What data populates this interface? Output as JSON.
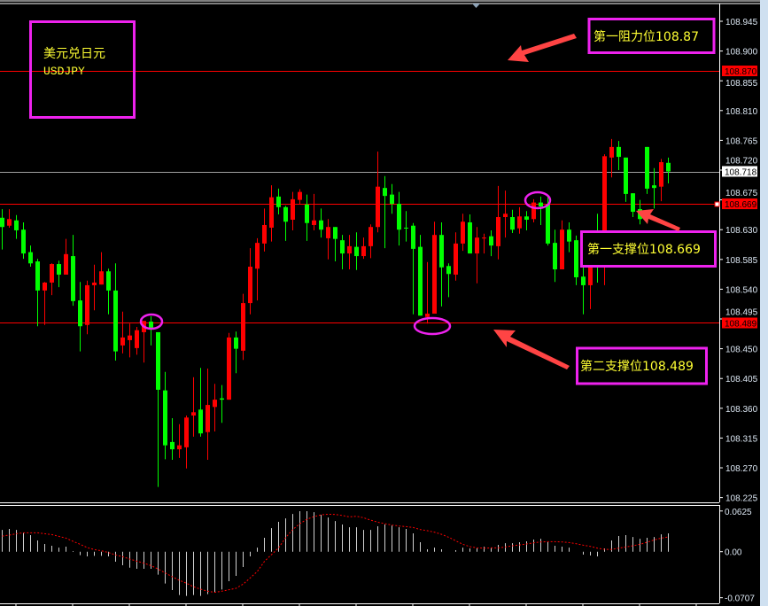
{
  "window": {
    "symbol_title_cn": "美元兑日元",
    "symbol_title": "USDJPY"
  },
  "annotations": {
    "resistance_1": "第一阻力位108.87",
    "support_1": "第一支撑位108.669",
    "support_2": "第二支撑位108.489"
  },
  "colors": {
    "bull_candle": "#ff0000",
    "bear_candle": "#00ff00",
    "annotation_box": "#ee22ee",
    "annotation_text": "#ffff33",
    "arrow": "#ff4444",
    "level_line": "#ff0000",
    "bid_line": "#a0a0a0",
    "macd_histogram": "#d0d0d0",
    "macd_signal": "#ff0000"
  },
  "chart_data": [
    {
      "type": "candlestick",
      "title": "",
      "ylim": [
        108.225,
        108.96
      ],
      "y_ticks": [
        "108.945",
        "108.900",
        "108.855",
        "108.810",
        "108.765",
        "108.720",
        "108.675",
        "108.630",
        "108.585",
        "108.540",
        "108.495",
        "108.450",
        "108.405",
        "108.360",
        "108.315",
        "108.270",
        "108.225"
      ],
      "price_tags": [
        {
          "label": "108.870",
          "value": 108.87,
          "style": "red"
        },
        {
          "label": "108.718",
          "value": 108.718,
          "style": "bid"
        },
        {
          "label": "108.669",
          "value": 108.669,
          "style": "red"
        },
        {
          "label": "108.489",
          "value": 108.489,
          "style": "red"
        }
      ],
      "horizontal_levels": [
        {
          "value": 108.87,
          "color": "#ff0000"
        },
        {
          "value": 108.718,
          "color": "#a0a0a0"
        },
        {
          "value": 108.669,
          "color": "#ff0000"
        },
        {
          "value": 108.489,
          "color": "#ff0000"
        }
      ],
      "ohlc_fields": [
        "open",
        "high",
        "low",
        "close"
      ],
      "candles": [
        [
          108.648,
          108.661,
          108.6,
          108.634
        ],
        [
          108.636,
          108.661,
          108.633,
          108.646
        ],
        [
          108.644,
          108.652,
          108.616,
          108.629
        ],
        [
          108.63,
          108.641,
          108.586,
          108.594
        ],
        [
          108.596,
          108.606,
          108.574,
          108.579
        ],
        [
          108.582,
          108.586,
          108.484,
          108.538
        ],
        [
          108.538,
          108.551,
          108.486,
          108.55
        ],
        [
          108.55,
          108.579,
          108.531,
          108.578
        ],
        [
          108.578,
          108.583,
          108.543,
          108.562
        ],
        [
          108.562,
          108.616,
          108.562,
          108.593
        ],
        [
          108.59,
          108.622,
          108.515,
          108.522
        ],
        [
          108.523,
          108.551,
          108.446,
          108.484
        ],
        [
          108.486,
          108.553,
          108.472,
          108.546
        ],
        [
          108.546,
          108.577,
          108.508,
          108.55
        ],
        [
          108.547,
          108.596,
          108.547,
          108.567
        ],
        [
          108.567,
          108.571,
          108.502,
          108.538
        ],
        [
          108.538,
          108.579,
          108.432,
          108.446
        ],
        [
          108.455,
          108.506,
          108.443,
          108.467
        ],
        [
          108.463,
          108.488,
          108.437,
          108.47
        ],
        [
          108.451,
          108.483,
          108.441,
          108.478
        ],
        [
          108.475,
          108.492,
          108.429,
          108.492
        ],
        [
          108.491,
          108.499,
          108.455,
          108.48
        ],
        [
          108.475,
          108.475,
          108.241,
          108.388
        ],
        [
          108.387,
          108.415,
          108.283,
          108.304
        ],
        [
          108.309,
          108.345,
          108.282,
          108.298
        ],
        [
          108.298,
          108.336,
          108.285,
          108.304
        ],
        [
          108.301,
          108.349,
          108.269,
          108.346
        ],
        [
          108.349,
          108.407,
          108.317,
          108.354
        ],
        [
          108.358,
          108.421,
          108.317,
          108.322
        ],
        [
          108.324,
          108.42,
          108.282,
          108.365
        ],
        [
          108.362,
          108.397,
          108.325,
          108.373
        ],
        [
          108.375,
          108.395,
          108.338,
          108.373
        ],
        [
          108.373,
          108.474,
          108.373,
          108.467
        ],
        [
          108.467,
          108.476,
          108.413,
          108.45
        ],
        [
          108.447,
          108.533,
          108.433,
          108.519
        ],
        [
          108.519,
          108.602,
          108.502,
          108.574
        ],
        [
          108.571,
          108.617,
          108.523,
          108.61
        ],
        [
          108.609,
          108.662,
          108.597,
          108.637
        ],
        [
          108.633,
          108.697,
          108.612,
          108.679
        ],
        [
          108.68,
          108.692,
          108.653,
          108.664
        ],
        [
          108.664,
          108.666,
          108.613,
          108.642
        ],
        [
          108.645,
          108.687,
          108.629,
          108.676
        ],
        [
          108.675,
          108.691,
          108.669,
          108.687
        ],
        [
          108.668,
          108.683,
          108.613,
          108.64
        ],
        [
          108.637,
          108.684,
          108.629,
          108.644
        ],
        [
          108.644,
          108.662,
          108.618,
          108.63
        ],
        [
          108.617,
          108.646,
          108.585,
          108.634
        ],
        [
          108.634,
          108.634,
          108.582,
          108.616
        ],
        [
          108.614,
          108.622,
          108.57,
          108.594
        ],
        [
          108.594,
          108.622,
          108.57,
          108.605
        ],
        [
          108.604,
          108.626,
          108.569,
          108.59
        ],
        [
          108.59,
          108.618,
          108.586,
          108.605
        ],
        [
          108.605,
          108.638,
          108.587,
          108.634
        ],
        [
          108.634,
          108.748,
          108.626,
          108.695
        ],
        [
          108.693,
          108.711,
          108.602,
          108.681
        ],
        [
          108.683,
          108.699,
          108.654,
          108.669
        ],
        [
          108.669,
          108.687,
          108.606,
          108.63
        ],
        [
          108.633,
          108.658,
          108.612,
          108.632
        ],
        [
          108.636,
          108.64,
          108.502,
          108.601
        ],
        [
          108.604,
          108.622,
          108.5,
          108.5
        ],
        [
          108.498,
          108.581,
          108.488,
          108.503
        ],
        [
          108.503,
          108.642,
          108.503,
          108.622
        ],
        [
          108.622,
          108.641,
          108.514,
          108.573
        ],
        [
          108.575,
          108.579,
          108.528,
          108.563
        ],
        [
          108.562,
          108.626,
          108.553,
          108.609
        ],
        [
          108.609,
          108.654,
          108.598,
          108.642
        ],
        [
          108.641,
          108.653,
          108.594,
          108.594
        ],
        [
          108.594,
          108.634,
          108.549,
          108.618
        ],
        [
          108.617,
          108.624,
          108.594,
          108.618
        ],
        [
          108.62,
          108.629,
          108.59,
          108.606
        ],
        [
          108.605,
          108.696,
          108.585,
          108.649
        ],
        [
          108.649,
          108.689,
          108.618,
          108.654
        ],
        [
          108.649,
          108.66,
          108.625,
          108.63
        ],
        [
          108.632,
          108.664,
          108.624,
          108.65
        ],
        [
          108.65,
          108.658,
          108.629,
          108.645
        ],
        [
          108.646,
          108.676,
          108.641,
          108.671
        ],
        [
          108.671,
          108.68,
          108.637,
          108.665
        ],
        [
          108.668,
          108.681,
          108.606,
          108.609
        ],
        [
          108.61,
          108.63,
          108.551,
          108.57
        ],
        [
          108.57,
          108.644,
          108.57,
          108.63
        ],
        [
          108.63,
          108.641,
          108.596,
          108.612
        ],
        [
          108.614,
          108.621,
          108.546,
          108.558
        ],
        [
          108.559,
          108.591,
          108.502,
          108.546
        ],
        [
          108.546,
          108.628,
          108.51,
          108.593
        ],
        [
          108.593,
          108.654,
          108.55,
          108.581
        ],
        [
          108.581,
          108.744,
          108.546,
          108.741
        ],
        [
          108.739,
          108.767,
          108.709,
          108.755
        ],
        [
          108.755,
          108.764,
          108.72,
          108.74
        ],
        [
          108.739,
          108.739,
          108.672,
          108.684
        ],
        [
          108.685,
          108.685,
          108.649,
          108.657
        ],
        [
          108.661,
          108.675,
          108.638,
          108.646
        ],
        [
          108.755,
          108.755,
          108.684,
          108.692
        ],
        [
          108.697,
          108.723,
          108.662,
          108.693
        ],
        [
          108.695,
          108.737,
          108.673,
          108.732
        ],
        [
          108.731,
          108.739,
          108.7,
          108.718
        ]
      ]
    },
    {
      "type": "bar+line",
      "title": "",
      "ylim": [
        -0.0707,
        0.0625
      ],
      "y_ticks": [
        "0.0625",
        "0.00",
        "-0.0707"
      ],
      "series": [
        {
          "type": "histogram",
          "values": [
            0.0335,
            0.0349,
            0.0335,
            0.029,
            0.0254,
            0.0172,
            0.0118,
            0.0091,
            0.0063,
            0.0077,
            0.001,
            -0.0054,
            -0.0072,
            -0.0063,
            -0.0063,
            -0.0072,
            -0.0154,
            -0.0208,
            -0.0245,
            -0.0263,
            -0.0263,
            -0.0263,
            -0.0353,
            -0.0489,
            -0.0589,
            -0.0666,
            -0.068,
            -0.0666,
            -0.068,
            -0.0652,
            -0.0625,
            -0.058,
            -0.0453,
            -0.0371,
            -0.0236,
            -0.0072,
            0.0063,
            0.0213,
            0.0362,
            0.0458,
            0.0512,
            0.058,
            0.0621,
            0.0621,
            0.0607,
            0.0566,
            0.0525,
            0.0471,
            0.0417,
            0.0376,
            0.0376,
            0.0335,
            0.0335,
            0.039,
            0.0417,
            0.0403,
            0.0376,
            0.0349,
            0.0281,
            0.0145,
            0.0036,
            0.0063,
            0.0036,
            0.0,
            0.0023,
            0.0063,
            0.005,
            0.005,
            0.0077,
            0.0063,
            0.0104,
            0.0131,
            0.0131,
            0.0145,
            0.0159,
            0.0186,
            0.0199,
            0.0145,
            0.0091,
            0.0077,
            0.0063,
            0.0,
            -0.0045,
            -0.0059,
            -0.0072,
            0.005,
            0.0172,
            0.024,
            0.0254,
            0.0226,
            0.0199,
            0.0213,
            0.0226,
            0.0267,
            0.0281
          ]
        },
        {
          "type": "dotted-line",
          "values": [
            0.024,
            0.0254,
            0.0276,
            0.029,
            0.029,
            0.029,
            0.0276,
            0.0263,
            0.0236,
            0.0208,
            0.0159,
            0.0113,
            0.0063,
            0.0032,
            0.0014,
            -0.0014,
            -0.005,
            -0.0077,
            -0.0113,
            -0.0145,
            -0.0177,
            -0.0213,
            -0.0267,
            -0.0326,
            -0.0385,
            -0.0439,
            -0.0485,
            -0.0539,
            -0.0575,
            -0.0607,
            -0.0625,
            -0.0607,
            -0.0584,
            -0.0562,
            -0.0498,
            -0.0403,
            -0.0304,
            -0.0149,
            -0.0045,
            0.0059,
            0.0217,
            0.034,
            0.043,
            0.0498,
            0.0539,
            0.0566,
            0.0575,
            0.0571,
            0.0557,
            0.0535,
            0.0544,
            0.0521,
            0.0485,
            0.0453,
            0.043,
            0.0408,
            0.0394,
            0.0385,
            0.0371,
            0.034,
            0.0322,
            0.0299,
            0.0267,
            0.0222,
            0.0168,
            0.0113,
            0.0077,
            0.0059,
            0.0054,
            0.0059,
            0.0059,
            0.0072,
            0.0091,
            0.0104,
            0.0118,
            0.0136,
            0.0149,
            0.0154,
            0.0154,
            0.0149,
            0.014,
            0.0122,
            0.01,
            0.0082,
            0.0054,
            0.0036,
            0.0036,
            0.0054,
            0.0072,
            0.0091,
            0.0113,
            0.0145,
            0.0181,
            0.0208,
            0.0226
          ]
        }
      ]
    }
  ]
}
